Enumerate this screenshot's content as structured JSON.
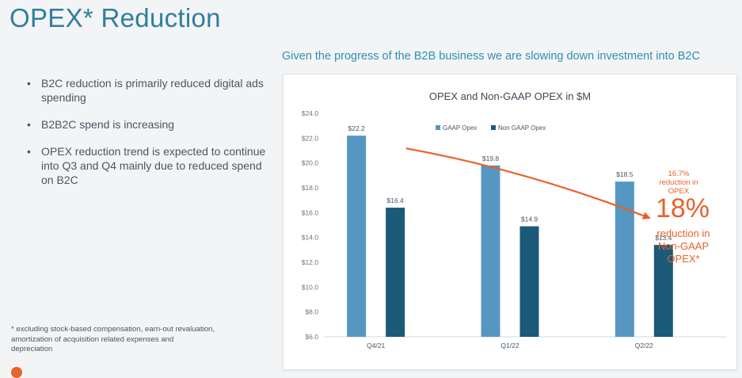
{
  "slide": {
    "title": "OPEX* Reduction",
    "subtitle": "Given the progress of the B2B business we are slowing down investment into B2C",
    "bullets": [
      "B2C reduction is primarily reduced digital ads spending",
      "B2B2C spend is increasing",
      "OPEX reduction trend is expected to continue into Q3 and Q4 mainly due to reduced spend on B2C"
    ],
    "footnote": "* excluding stock-based compensation, earn-out revaluation, amortization of acquisition related expenses and depreciation",
    "callout": {
      "small": "16.7% reduction in OPEX",
      "big": "18%",
      "text": "reduction in Non-GAAP OPEX*"
    },
    "colors": {
      "accent": "#e8622a",
      "title": "#2f7f9e",
      "gaap": "#5597c1",
      "non_gaap": "#1b5a78"
    }
  },
  "chart_data": {
    "type": "bar",
    "title": "OPEX and Non-GAAP OPEX in $M",
    "categories": [
      "Q4/21",
      "Q1/22",
      "Q2/22"
    ],
    "series": [
      {
        "name": "GAAP Opex",
        "values": [
          22.2,
          19.8,
          18.5
        ],
        "labels": [
          "$22.2",
          "$19.8",
          "$18.5"
        ],
        "color": "#5597c1"
      },
      {
        "name": "Non GAAP Opex",
        "values": [
          16.4,
          14.9,
          13.4
        ],
        "labels": [
          "$16.4",
          "$14.9",
          "$13.4"
        ],
        "color": "#1b5a78"
      }
    ],
    "ylim": [
      6,
      24
    ],
    "yticks": [
      "$6.0",
      "$8.0",
      "$10.0",
      "$12.0",
      "$14.0",
      "$16.0",
      "$18.0",
      "$20.0",
      "$22.0",
      "$24.0"
    ],
    "ytick_values": [
      6,
      8,
      10,
      12,
      14,
      16,
      18,
      20,
      22,
      24
    ],
    "grid": false,
    "legend": "top-right",
    "trend_arrow": {
      "from_category": "Q4/21",
      "to": "callout",
      "color": "#e8622a"
    }
  }
}
